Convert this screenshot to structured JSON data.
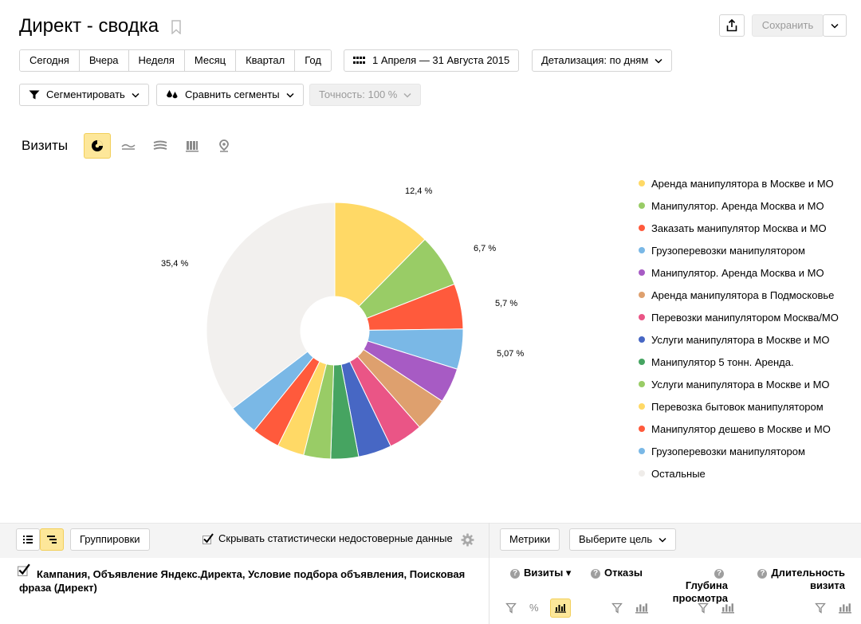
{
  "header": {
    "title": "Директ - сводка",
    "save_label": "Сохранить"
  },
  "periods": [
    "Сегодня",
    "Вчера",
    "Неделя",
    "Месяц",
    "Квартал",
    "Год"
  ],
  "date_range": "1 Апреля — 31 Августа 2015",
  "detail": "Детализация: по дням",
  "segment_label": "Сегментировать",
  "compare_label": "Сравнить сегменты",
  "accuracy_label": "Точность: 100 %",
  "metric_title": "Визиты",
  "chart_data": {
    "type": "pie",
    "title": "Визиты",
    "slices": [
      {
        "label": "Аренда манипулятора в Москве и МО",
        "value": 12.4,
        "color": "#ffd966"
      },
      {
        "label": "Манипулятор. Аренда Москва и МО",
        "value": 6.7,
        "color": "#99cc66"
      },
      {
        "label": "Заказать манипулятор Москва и МО",
        "value": 5.7,
        "color": "#ff5a3c"
      },
      {
        "label": "Грузоперевозки манипулятором",
        "value": 5.07,
        "color": "#7ab8e6"
      },
      {
        "label": "Манипулятор. Аренда Москва и МО",
        "value": 4.4,
        "color": "#a75bc4"
      },
      {
        "label": "Аренда манипулятора в Подмосковье",
        "value": 4.3,
        "color": "#dea06e"
      },
      {
        "label": "Перевозки манипулятором Москва/МО",
        "value": 4.3,
        "color": "#ea5586"
      },
      {
        "label": "Услуги манипулятора в Москве и МО",
        "value": 4.2,
        "color": "#4767c4"
      },
      {
        "label": "Манипулятор 5 тонн. Аренда.",
        "value": 3.5,
        "color": "#46a461"
      },
      {
        "label": "Услуги манипулятора в Москве и МО",
        "value": 3.4,
        "color": "#99cc66"
      },
      {
        "label": "Перевозка бытовок манипулятором",
        "value": 3.4,
        "color": "#ffd966"
      },
      {
        "label": "Манипулятор дешево в Москве и МО",
        "value": 3.5,
        "color": "#ff5a3c"
      },
      {
        "label": "Грузоперевозки манипулятором",
        "value": 3.83,
        "color": "#7ab8e6"
      },
      {
        "label": "Остальные",
        "value": 35.4,
        "color": "#f2f0ee"
      }
    ],
    "shown_labels": [
      "12,4 %",
      "6,7 %",
      "5,7 %",
      "5,07 %",
      "35,4 %"
    ],
    "legend_position": "right"
  },
  "table_toolbar": {
    "groupings_label": "Группировки",
    "hide_unreliable_label": "Скрывать статистически недостоверные данные",
    "metrics_label": "Метрики",
    "goal_label": "Выберите цель"
  },
  "table": {
    "dimension_header": "Кампания, Объявление Яндекс.Директа, Условие подбора объявления, Поисковая фраза (Директ)",
    "columns": [
      {
        "line1": "Визиты ▾",
        "line2": ""
      },
      {
        "line1": "Отказы",
        "line2": ""
      },
      {
        "line1": "Глубина",
        "line2": "просмотра"
      },
      {
        "line1": "Длительность",
        "line2": "визита"
      }
    ]
  }
}
